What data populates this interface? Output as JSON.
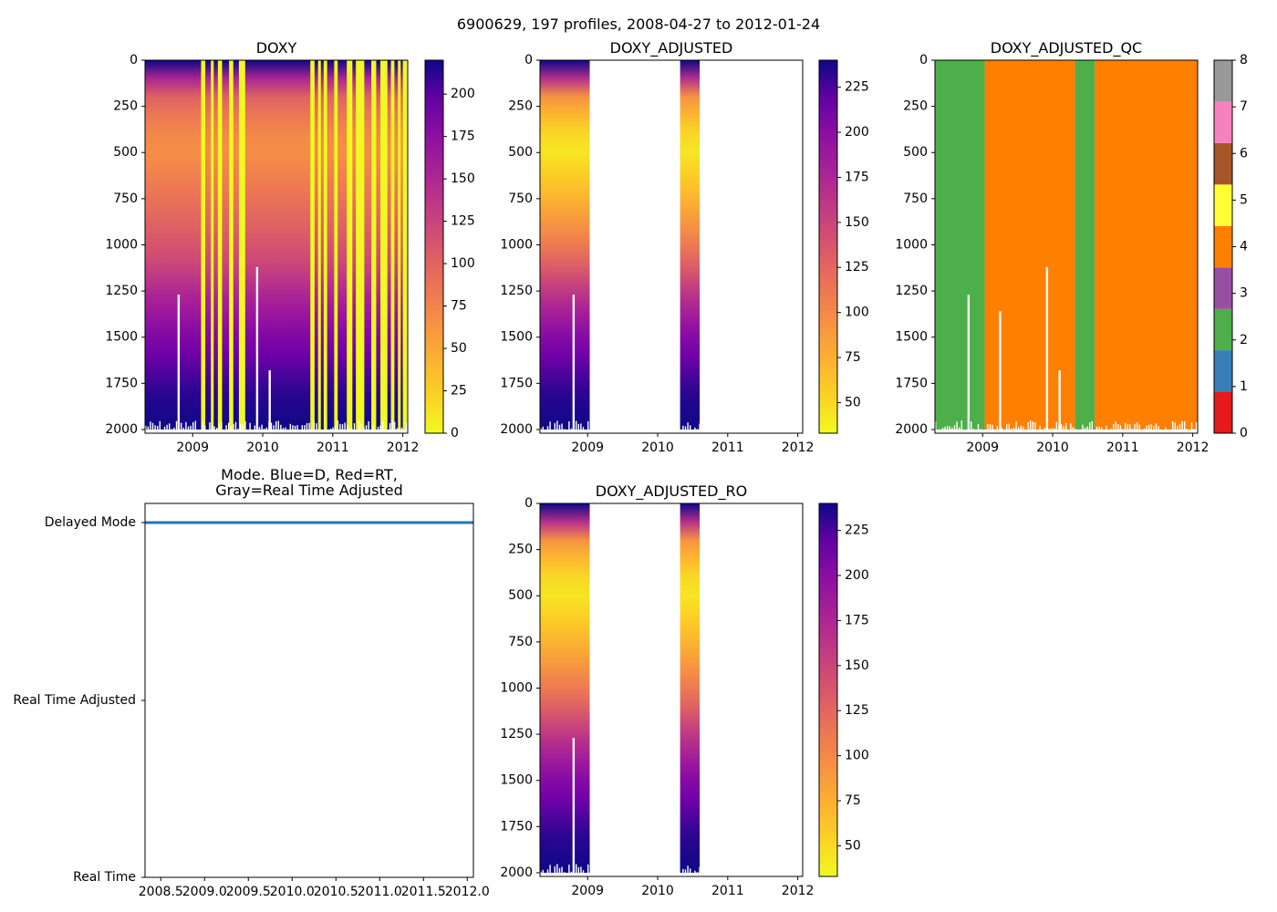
{
  "figure": {
    "suptitle": "6900629, 197 profiles, 2008-04-27 to 2012-01-24",
    "background": "#ffffff"
  },
  "chart_data": [
    {
      "id": "doxy",
      "type": "heatmap",
      "title": "DOXY",
      "xlim": [
        2008.32,
        2012.07
      ],
      "ylim": [
        2020,
        0
      ],
      "xticks": [
        2009,
        2010,
        2011,
        2012
      ],
      "xtick_labels": [
        "2009",
        "2010",
        "2011",
        "2012"
      ],
      "yticks": [
        0,
        250,
        500,
        750,
        1000,
        1250,
        1500,
        1750,
        2000
      ],
      "ytick_labels": [
        "0",
        "250",
        "500",
        "750",
        "1000",
        "1250",
        "1500",
        "1750",
        "2000"
      ],
      "colormap": "plasma_r",
      "vmin": 0,
      "vmax": 220,
      "colorbar_ticks": [
        0,
        25,
        50,
        75,
        100,
        125,
        150,
        175,
        200
      ],
      "colorbar_labels": [
        "0",
        "25",
        "50",
        "75",
        "100",
        "125",
        "150",
        "175",
        "200"
      ],
      "profile_start": 2008.32,
      "profile_end": 2012.07,
      "yellow_bands": [
        [
          2009.12,
          2009.18
        ],
        [
          2009.26,
          2009.3
        ],
        [
          2009.36,
          2009.42
        ],
        [
          2009.52,
          2009.58
        ],
        [
          2009.66,
          2009.75
        ],
        [
          2010.68,
          2010.74
        ],
        [
          2010.79,
          2010.83
        ],
        [
          2010.87,
          2010.92
        ],
        [
          2011.02,
          2011.07
        ],
        [
          2011.2,
          2011.28
        ],
        [
          2011.33,
          2011.45
        ],
        [
          2011.55,
          2011.62
        ],
        [
          2011.68,
          2011.78
        ],
        [
          2011.83,
          2011.88
        ],
        [
          2011.93,
          2011.97
        ],
        [
          2012.0,
          2012.07
        ]
      ],
      "gaps": [
        {
          "x": 2008.8,
          "depth_top": 1270
        },
        {
          "x": 2009.92,
          "depth_top": 1120
        },
        {
          "x": 2010.1,
          "depth_top": 1680
        }
      ]
    },
    {
      "id": "doxy_adjusted",
      "type": "heatmap",
      "title": "DOXY_ADJUSTED",
      "xlim": [
        2008.32,
        2012.07
      ],
      "ylim": [
        2020,
        0
      ],
      "xticks": [
        2009,
        2010,
        2011,
        2012
      ],
      "xtick_labels": [
        "2009",
        "2010",
        "2011",
        "2012"
      ],
      "yticks": [
        0,
        250,
        500,
        750,
        1000,
        1250,
        1500,
        1750,
        2000
      ],
      "ytick_labels": [
        "0",
        "250",
        "500",
        "750",
        "1000",
        "1250",
        "1500",
        "1750",
        "2000"
      ],
      "colormap": "plasma_r",
      "vmin": 33,
      "vmax": 240,
      "colorbar_ticks": [
        50,
        75,
        100,
        125,
        150,
        175,
        200,
        225
      ],
      "colorbar_labels": [
        "50",
        "75",
        "100",
        "125",
        "150",
        "175",
        "200",
        "225"
      ],
      "segments": [
        [
          2008.32,
          2009.03
        ],
        [
          2010.32,
          2010.6
        ]
      ],
      "gaps": [
        {
          "x": 2008.8,
          "depth_top": 1270
        }
      ]
    },
    {
      "id": "doxy_adjusted_qc",
      "type": "heatmap",
      "title": "DOXY_ADJUSTED_QC",
      "xlim": [
        2008.32,
        2012.07
      ],
      "ylim": [
        2020,
        0
      ],
      "xticks": [
        2009,
        2010,
        2011,
        2012
      ],
      "xtick_labels": [
        "2009",
        "2010",
        "2011",
        "2012"
      ],
      "yticks": [
        0,
        250,
        500,
        750,
        1000,
        1250,
        1500,
        1750,
        2000
      ],
      "ytick_labels": [
        "0",
        "250",
        "500",
        "750",
        "1000",
        "1250",
        "1500",
        "1750",
        "2000"
      ],
      "qc_colors": [
        "#e41a1c",
        "#377eb8",
        "#4daf4a",
        "#984ea3",
        "#ff7f00",
        "#ffff33",
        "#a65628",
        "#f781bf",
        "#999999"
      ],
      "colorbar_ticks": [
        0,
        1,
        2,
        3,
        4,
        5,
        6,
        7,
        8
      ],
      "colorbar_labels": [
        "0",
        "1",
        "2",
        "3",
        "4",
        "5",
        "6",
        "7",
        "8"
      ],
      "qc_segments": [
        {
          "from": 2008.32,
          "to": 2009.03,
          "qc": 2
        },
        {
          "from": 2009.03,
          "to": 2010.32,
          "qc": 4
        },
        {
          "from": 2010.32,
          "to": 2010.6,
          "qc": 2
        },
        {
          "from": 2010.6,
          "to": 2012.07,
          "qc": 4
        }
      ],
      "gaps": [
        {
          "x": 2008.8,
          "depth_top": 1270
        },
        {
          "x": 2009.25,
          "depth_top": 1360
        },
        {
          "x": 2009.92,
          "depth_top": 1120
        },
        {
          "x": 2010.1,
          "depth_top": 1680
        }
      ]
    },
    {
      "id": "mode",
      "type": "line",
      "title_lines": [
        "Mode. Blue=D, Red=RT,",
        "Gray=Real Time Adjusted"
      ],
      "xlim": [
        2008.32,
        2012.07
      ],
      "xticks": [
        2008.5,
        2009.0,
        2009.5,
        2010.0,
        2010.5,
        2011.0,
        2011.5,
        2012.0
      ],
      "xtick_labels": [
        "2008.5",
        "2009.0",
        "2009.5",
        "2010.0",
        "2010.5",
        "2011.0",
        "2011.5",
        "2012.0"
      ],
      "categories": [
        "Delayed Mode",
        "Real Time Adjusted",
        "Real Time"
      ],
      "series": [
        {
          "name": "D",
          "color": "#1f77b4",
          "from": 2008.32,
          "to": 2012.07,
          "category": "Delayed Mode"
        }
      ]
    },
    {
      "id": "doxy_adjusted_ro",
      "type": "heatmap",
      "title": "DOXY_ADJUSTED_RO",
      "xlim": [
        2008.32,
        2012.07
      ],
      "ylim": [
        2020,
        0
      ],
      "xticks": [
        2009,
        2010,
        2011,
        2012
      ],
      "xtick_labels": [
        "2009",
        "2010",
        "2011",
        "2012"
      ],
      "yticks": [
        0,
        250,
        500,
        750,
        1000,
        1250,
        1500,
        1750,
        2000
      ],
      "ytick_labels": [
        "0",
        "250",
        "500",
        "750",
        "1000",
        "1250",
        "1500",
        "1750",
        "2000"
      ],
      "colormap": "plasma_r",
      "vmin": 33,
      "vmax": 240,
      "colorbar_ticks": [
        50,
        75,
        100,
        125,
        150,
        175,
        200,
        225
      ],
      "colorbar_labels": [
        "50",
        "75",
        "100",
        "125",
        "150",
        "175",
        "200",
        "225"
      ],
      "segments": [
        [
          2008.32,
          2009.03
        ],
        [
          2010.32,
          2010.6
        ]
      ],
      "gaps": [
        {
          "x": 2008.8,
          "depth_top": 1270
        }
      ]
    }
  ]
}
